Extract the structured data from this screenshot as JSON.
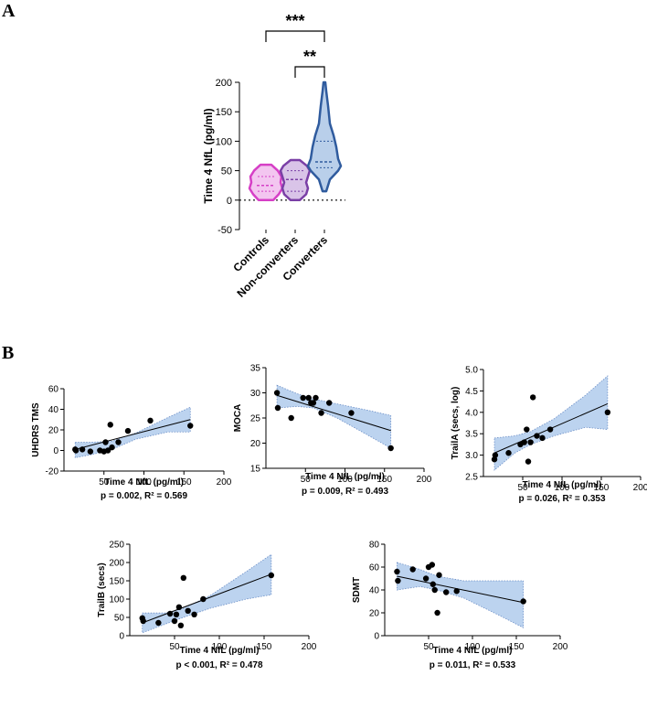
{
  "panel_a": {
    "label": "A",
    "chart_data": {
      "type": "violin",
      "ylabel": "Time 4 NfL (pg/ml)",
      "ylim": [
        -50,
        200
      ],
      "yticks": [
        "-50",
        "0",
        "50",
        "100",
        "150",
        "200"
      ],
      "categories": [
        "Controls",
        "Non-converters",
        "Converters"
      ],
      "colors": [
        "#d63fc6",
        "#7a3fa6",
        "#2f5b9e"
      ],
      "fills": [
        "#f3c6f0",
        "#d9c4e8",
        "#b9cfea"
      ],
      "series": [
        {
          "name": "Controls",
          "min": 2,
          "max": 60,
          "median": 25,
          "q1": 15,
          "q3": 40,
          "profile": [
            [
              0,
              8
            ],
            [
              10,
              14
            ],
            [
              20,
              18
            ],
            [
              30,
              16
            ],
            [
              40,
              17
            ],
            [
              50,
              13
            ],
            [
              60,
              6
            ]
          ]
        },
        {
          "name": "Non-converters",
          "min": 2,
          "max": 68,
          "median": 35,
          "q1": 15,
          "q3": 50,
          "profile": [
            [
              0,
              5
            ],
            [
              10,
              12
            ],
            [
              20,
              14
            ],
            [
              30,
              12
            ],
            [
              40,
              14
            ],
            [
              50,
              16
            ],
            [
              58,
              13
            ],
            [
              68,
              5
            ]
          ]
        },
        {
          "name": "Converters",
          "min": 15,
          "max": 200,
          "median": 65,
          "q1": 55,
          "q3": 100,
          "profile": [
            [
              15,
              2
            ],
            [
              35,
              6
            ],
            [
              50,
              15
            ],
            [
              58,
              18
            ],
            [
              70,
              15
            ],
            [
              90,
              13
            ],
            [
              110,
              10
            ],
            [
              130,
              6
            ],
            [
              160,
              4
            ],
            [
              185,
              2
            ],
            [
              200,
              1
            ]
          ]
        }
      ],
      "comparisons": [
        {
          "from": "Controls",
          "to": "Converters",
          "label": "***"
        },
        {
          "from": "Non-converters",
          "to": "Converters",
          "label": "**"
        }
      ]
    }
  },
  "panel_b": {
    "label": "B",
    "chart_data": [
      {
        "type": "scatter",
        "title": "",
        "xlabel": "Time 4 NfL (pg/ml)",
        "ylabel": "UHDRS TMS",
        "stats": "p = 0.002, R² = 0.569",
        "xlim": [
          0,
          200
        ],
        "ylim": [
          -20,
          60
        ],
        "xticks": [
          "50",
          "100",
          "150",
          "200"
        ],
        "yticks": [
          "-20",
          "0",
          "20",
          "40",
          "60"
        ],
        "points": [
          [
            14,
            1
          ],
          [
            15,
            0
          ],
          [
            23,
            1
          ],
          [
            33,
            -1
          ],
          [
            45,
            0
          ],
          [
            50,
            -1
          ],
          [
            52,
            8
          ],
          [
            55,
            0
          ],
          [
            58,
            25
          ],
          [
            60,
            3
          ],
          [
            68,
            8
          ],
          [
            80,
            19
          ],
          [
            108,
            29
          ],
          [
            158,
            24
          ]
        ],
        "fit": [
          [
            14,
            1
          ],
          [
            158,
            30
          ]
        ],
        "band_upper": [
          [
            14,
            8
          ],
          [
            35,
            8
          ],
          [
            60,
            9
          ],
          [
            90,
            17
          ],
          [
            130,
            32
          ],
          [
            158,
            42
          ]
        ],
        "band_lower": [
          [
            14,
            -7
          ],
          [
            35,
            -4
          ],
          [
            60,
            1
          ],
          [
            90,
            11
          ],
          [
            130,
            18
          ],
          [
            158,
            18
          ]
        ]
      },
      {
        "type": "scatter",
        "xlabel": "Time 4 NfL (pg/ml)",
        "ylabel": "MOCA",
        "stats": "p = 0.009, R² = 0.493",
        "xlim": [
          0,
          200
        ],
        "ylim": [
          15,
          35
        ],
        "xticks": [
          "50",
          "100",
          "150",
          "200"
        ],
        "yticks": [
          "15",
          "20",
          "25",
          "30",
          "35"
        ],
        "points": [
          [
            14,
            30
          ],
          [
            15,
            27
          ],
          [
            32,
            25
          ],
          [
            47,
            29
          ],
          [
            54,
            29
          ],
          [
            57,
            28
          ],
          [
            60,
            28
          ],
          [
            63,
            29
          ],
          [
            70,
            26
          ],
          [
            80,
            28
          ],
          [
            108,
            26
          ],
          [
            158,
            19
          ]
        ],
        "fit": [
          [
            14,
            29.5
          ],
          [
            158,
            22.5
          ]
        ],
        "band_upper": [
          [
            14,
            31.5
          ],
          [
            40,
            29.8
          ],
          [
            60,
            28.8
          ],
          [
            90,
            27.8
          ],
          [
            130,
            26.5
          ],
          [
            158,
            25.5
          ]
        ],
        "band_lower": [
          [
            14,
            27
          ],
          [
            40,
            27.3
          ],
          [
            60,
            27.0
          ],
          [
            90,
            25.0
          ],
          [
            130,
            21.5
          ],
          [
            158,
            19.0
          ]
        ]
      },
      {
        "type": "scatter",
        "xlabel": "Time 4 NfL (pg/ml)",
        "ylabel": "TrailA (secs, log)",
        "stats": "p = 0.026, R² = 0.353",
        "xlim": [
          0,
          200
        ],
        "ylim": [
          2.5,
          5.0
        ],
        "xticks": [
          "50",
          "100",
          "150",
          "200"
        ],
        "yticks": [
          "2.5",
          "3.0",
          "3.5",
          "4.0",
          "4.5",
          "5.0"
        ],
        "points": [
          [
            14,
            2.9
          ],
          [
            15,
            3.0
          ],
          [
            32,
            3.05
          ],
          [
            47,
            3.25
          ],
          [
            52,
            3.3
          ],
          [
            55,
            3.6
          ],
          [
            57,
            2.85
          ],
          [
            60,
            3.3
          ],
          [
            63,
            4.35
          ],
          [
            68,
            3.45
          ],
          [
            75,
            3.4
          ],
          [
            85,
            3.6
          ],
          [
            158,
            4.0
          ]
        ],
        "fit": [
          [
            14,
            3.05
          ],
          [
            158,
            4.2
          ]
        ],
        "band_upper": [
          [
            14,
            3.4
          ],
          [
            40,
            3.45
          ],
          [
            60,
            3.55
          ],
          [
            90,
            3.85
          ],
          [
            130,
            4.4
          ],
          [
            158,
            4.85
          ]
        ],
        "band_lower": [
          [
            14,
            2.65
          ],
          [
            40,
            3.05
          ],
          [
            60,
            3.25
          ],
          [
            90,
            3.45
          ],
          [
            130,
            3.65
          ],
          [
            158,
            3.6
          ]
        ]
      },
      {
        "type": "scatter",
        "xlabel": "Time 4 NfL (pg/ml)",
        "ylabel": "TrailB (secs)",
        "stats": "p < 0.001, R² = 0.478",
        "xlim": [
          0,
          200
        ],
        "ylim": [
          0,
          250
        ],
        "xticks": [
          "50",
          "100",
          "150",
          "200"
        ],
        "yticks": [
          "0",
          "50",
          "100",
          "150",
          "200",
          "250"
        ],
        "points": [
          [
            14,
            48
          ],
          [
            15,
            40
          ],
          [
            32,
            35
          ],
          [
            45,
            60
          ],
          [
            50,
            40
          ],
          [
            52,
            58
          ],
          [
            55,
            78
          ],
          [
            57,
            28
          ],
          [
            60,
            158
          ],
          [
            65,
            68
          ],
          [
            72,
            58
          ],
          [
            82,
            100
          ],
          [
            158,
            165
          ]
        ],
        "fit": [
          [
            14,
            35
          ],
          [
            158,
            168
          ]
        ],
        "band_upper": [
          [
            14,
            62
          ],
          [
            40,
            62
          ],
          [
            60,
            75
          ],
          [
            90,
            110
          ],
          [
            130,
            175
          ],
          [
            158,
            222
          ]
        ],
        "band_lower": [
          [
            14,
            8
          ],
          [
            40,
            32
          ],
          [
            60,
            50
          ],
          [
            90,
            75
          ],
          [
            130,
            100
          ],
          [
            158,
            112
          ]
        ]
      },
      {
        "type": "scatter",
        "xlabel": "Time 4 NfL (pg/ml)",
        "ylabel": "SDMT",
        "stats": "p = 0.011, R² = 0.533",
        "xlim": [
          0,
          200
        ],
        "ylim": [
          0,
          80
        ],
        "xticks": [
          "50",
          "100",
          "150",
          "200"
        ],
        "yticks": [
          "0",
          "20",
          "40",
          "60",
          "80"
        ],
        "points": [
          [
            14,
            56
          ],
          [
            15,
            48
          ],
          [
            32,
            58
          ],
          [
            47,
            50
          ],
          [
            50,
            60
          ],
          [
            54,
            62
          ],
          [
            55,
            45
          ],
          [
            57,
            40
          ],
          [
            60,
            20
          ],
          [
            62,
            53
          ],
          [
            70,
            38
          ],
          [
            82,
            39
          ],
          [
            158,
            30
          ]
        ],
        "fit": [
          [
            14,
            52
          ],
          [
            158,
            29
          ]
        ],
        "band_upper": [
          [
            14,
            64
          ],
          [
            40,
            58
          ],
          [
            60,
            52
          ],
          [
            90,
            48
          ],
          [
            130,
            48
          ],
          [
            158,
            48
          ]
        ],
        "band_lower": [
          [
            14,
            40
          ],
          [
            40,
            43
          ],
          [
            60,
            40
          ],
          [
            90,
            33
          ],
          [
            130,
            18
          ],
          [
            158,
            7
          ]
        ]
      }
    ]
  }
}
